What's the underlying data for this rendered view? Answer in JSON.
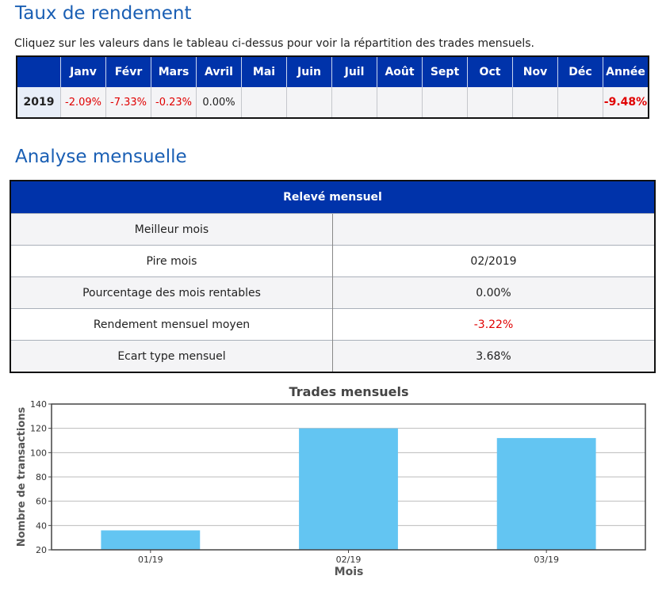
{
  "returns": {
    "title": "Taux de rendement",
    "note": "Cliquez sur les valeurs dans le tableau ci-dessus pour voir la répartition des trades mensuels.",
    "headers": [
      "",
      "Janv",
      "Févr",
      "Mars",
      "Avril",
      "Mai",
      "Juin",
      "Juil",
      "Août",
      "Sept",
      "Oct",
      "Nov",
      "Déc",
      "Année"
    ],
    "row": {
      "year": "2019",
      "cells": [
        "-2.09%",
        "-7.33%",
        "-0.23%",
        "0.00%",
        "",
        "",
        "",
        "",
        "",
        "",
        "",
        "",
        "-9.48%"
      ]
    }
  },
  "analysis": {
    "title": "Analyse mensuelle",
    "header": "Relevé mensuel",
    "rows": [
      {
        "label": "Meilleur mois",
        "value": ""
      },
      {
        "label": "Pire mois",
        "value": "02/2019"
      },
      {
        "label": "Pourcentage des mois rentables",
        "value": "0.00%"
      },
      {
        "label": "Rendement mensuel moyen",
        "value": "-3.22%"
      },
      {
        "label": "Ecart type mensuel",
        "value": "3.68%"
      }
    ]
  },
  "colors": {
    "header_bg": "#0033aa",
    "negative": "#e00000",
    "bar": "#63c5f2",
    "title_blue": "#1a5fb4"
  },
  "chart_data": {
    "type": "bar",
    "title": "Trades mensuels",
    "xlabel": "Mois",
    "ylabel": "Nombre de transactions",
    "categories": [
      "01/19",
      "02/19",
      "03/19"
    ],
    "values": [
      36,
      120,
      112
    ],
    "ylim": [
      20,
      140
    ],
    "yticks": [
      20,
      40,
      60,
      80,
      100,
      120,
      140
    ],
    "grid": true
  }
}
